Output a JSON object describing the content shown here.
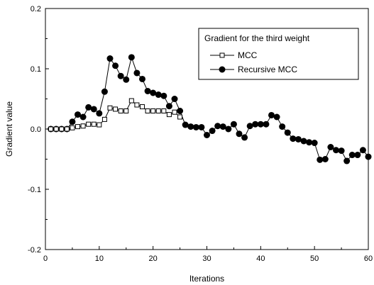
{
  "chart_data": {
    "type": "line",
    "xlabel": "Iterations",
    "ylabel": "Gradient value",
    "xlim": [
      0,
      60
    ],
    "ylim": [
      -0.2,
      0.2
    ],
    "x_ticks": [
      0,
      10,
      20,
      30,
      40,
      50,
      60
    ],
    "x_tick_labels": [
      "0",
      "10",
      "20",
      "30",
      "40",
      "50",
      "60"
    ],
    "y_ticks": [
      -0.2,
      -0.1,
      0.0,
      0.1,
      0.2
    ],
    "y_tick_labels": [
      "-0.2",
      "-0.1",
      "0.0",
      "0.1",
      "0.2"
    ],
    "grid": false,
    "legend": {
      "title": "Gradient for the third weight",
      "placement": "top-right"
    },
    "series": [
      {
        "name": "MCC",
        "marker": "open-square",
        "color": "#000000",
        "x": [
          1,
          2,
          3,
          4,
          5,
          6,
          7,
          8,
          9,
          10,
          11,
          12,
          13,
          14,
          15,
          16,
          17,
          18,
          19,
          20,
          21,
          22,
          23,
          24,
          25
        ],
        "y": [
          0.0,
          0.0,
          0.0,
          0.0,
          0.002,
          0.004,
          0.005,
          0.008,
          0.008,
          0.007,
          0.016,
          0.035,
          0.033,
          0.03,
          0.03,
          0.047,
          0.04,
          0.037,
          0.03,
          0.03,
          0.03,
          0.03,
          0.024,
          0.028,
          0.02
        ]
      },
      {
        "name": "Recursive MCC",
        "marker": "filled-circle",
        "color": "#000000",
        "x": [
          1,
          2,
          3,
          4,
          5,
          6,
          7,
          8,
          9,
          10,
          11,
          12,
          13,
          14,
          15,
          16,
          17,
          18,
          19,
          20,
          21,
          22,
          23,
          24,
          25,
          26,
          27,
          28,
          29,
          30,
          31,
          32,
          33,
          34,
          35,
          36,
          37,
          38,
          39,
          40,
          41,
          42,
          43,
          44,
          45,
          46,
          47,
          48,
          49,
          50,
          51,
          52,
          53,
          54,
          55,
          56,
          57,
          58,
          59,
          60
        ],
        "y": [
          0.0,
          0.0,
          0.0,
          0.0,
          0.012,
          0.024,
          0.02,
          0.036,
          0.033,
          0.026,
          0.062,
          0.117,
          0.105,
          0.088,
          0.082,
          0.119,
          0.093,
          0.083,
          0.063,
          0.06,
          0.057,
          0.055,
          0.038,
          0.05,
          0.03,
          0.007,
          0.004,
          0.003,
          0.003,
          -0.01,
          -0.003,
          0.005,
          0.004,
          0.0,
          0.008,
          -0.008,
          -0.014,
          0.005,
          0.008,
          0.008,
          0.008,
          0.023,
          0.02,
          0.004,
          -0.006,
          -0.016,
          -0.017,
          -0.02,
          -0.022,
          -0.023,
          -0.051,
          -0.05,
          -0.03,
          -0.035,
          -0.036,
          -0.053,
          -0.043,
          -0.043,
          -0.035,
          -0.046
        ]
      }
    ]
  }
}
